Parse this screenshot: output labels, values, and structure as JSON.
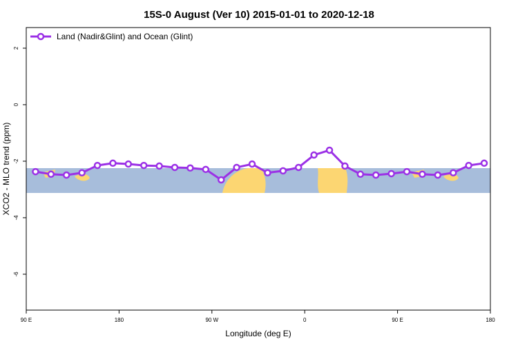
{
  "chart_data": {
    "type": "line",
    "title": "15S-0 August (Ver 10)   2015-01-01 to 2020-12-18",
    "xlabel": "Longitude (deg E)",
    "ylabel": "XCO2 - MLO trend (ppm)",
    "x": [
      99,
      114,
      129,
      144,
      159,
      174,
      189,
      204,
      219,
      234,
      249,
      264,
      279,
      294,
      309,
      324,
      339,
      354,
      369,
      384,
      399,
      414,
      429,
      444,
      459,
      474,
      489,
      504,
      519,
      534
    ],
    "series": [
      {
        "name": "Land (Nadir&Glint) and Ocean (Glint)",
        "color": "#9b30e6",
        "values": [
          -2.37,
          -2.46,
          -2.49,
          -2.41,
          -2.15,
          -2.07,
          -2.1,
          -2.15,
          -2.17,
          -2.22,
          -2.24,
          -2.29,
          -2.66,
          -2.22,
          -2.1,
          -2.41,
          -2.34,
          -2.22,
          -1.78,
          -1.61,
          -2.17,
          -2.46,
          -2.49,
          -2.44,
          -2.37,
          -2.46,
          -2.49,
          -2.41,
          -2.15,
          -2.07
        ]
      }
    ],
    "xlim": [
      90,
      540
    ],
    "xticks": [
      {
        "value": 90,
        "label": "90 E"
      },
      180,
      {
        "value": 270,
        "label": "90 W"
      },
      {
        "value": 360,
        "label": "0"
      },
      {
        "value": 450,
        "label": "90 E"
      },
      {
        "value": 540,
        "label": "180"
      }
    ],
    "ylim": [
      -7.27,
      2.73
    ],
    "yticks": [
      2,
      0,
      -2,
      -4,
      -6
    ],
    "legend": "top-left"
  }
}
